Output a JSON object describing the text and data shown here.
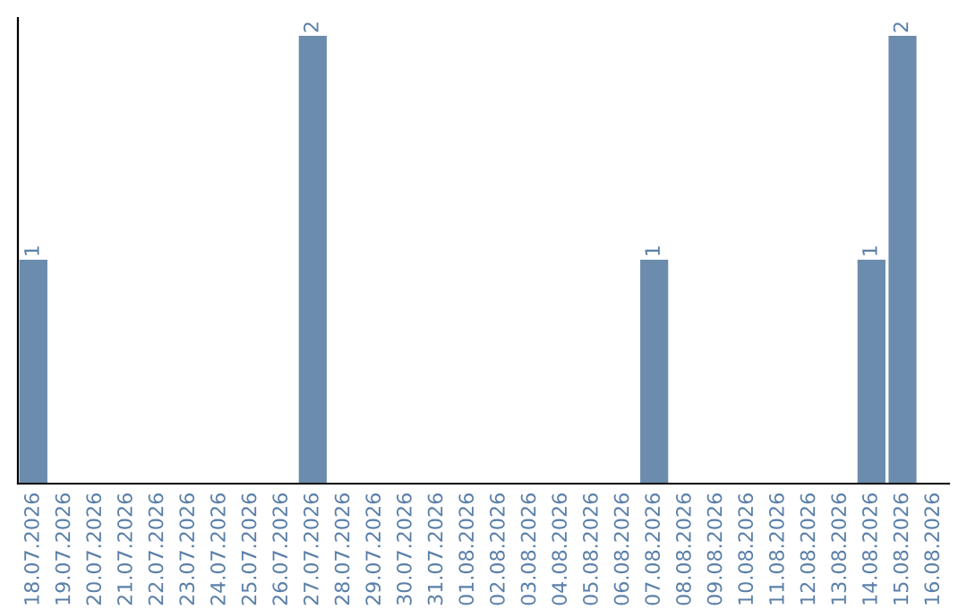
{
  "chart_data": {
    "type": "bar",
    "categories": [
      "18.07.2026",
      "19.07.2026",
      "20.07.2026",
      "21.07.2026",
      "22.07.2026",
      "23.07.2026",
      "24.07.2026",
      "25.07.2026",
      "26.07.2026",
      "27.07.2026",
      "28.07.2026",
      "29.07.2026",
      "30.07.2026",
      "31.07.2026",
      "01.08.2026",
      "02.08.2026",
      "03.08.2026",
      "04.08.2026",
      "05.08.2026",
      "06.08.2026",
      "07.08.2026",
      "08.08.2026",
      "09.08.2026",
      "10.08.2026",
      "11.08.2026",
      "12.08.2026",
      "13.08.2026",
      "14.08.2026",
      "15.08.2026",
      "16.08.2026"
    ],
    "values": [
      1,
      0,
      0,
      0,
      0,
      0,
      0,
      0,
      0,
      2,
      0,
      0,
      0,
      0,
      0,
      0,
      0,
      0,
      0,
      0,
      1,
      0,
      0,
      0,
      0,
      0,
      0,
      1,
      2,
      0
    ],
    "value_labels": [
      "1",
      null,
      null,
      null,
      null,
      null,
      null,
      null,
      null,
      "2",
      null,
      null,
      null,
      null,
      null,
      null,
      null,
      null,
      null,
      null,
      "1",
      null,
      null,
      null,
      null,
      null,
      null,
      "1",
      "2",
      null
    ],
    "color": "#6b8cad",
    "tick_labels": "x",
    "grid": false,
    "legend": false
  }
}
